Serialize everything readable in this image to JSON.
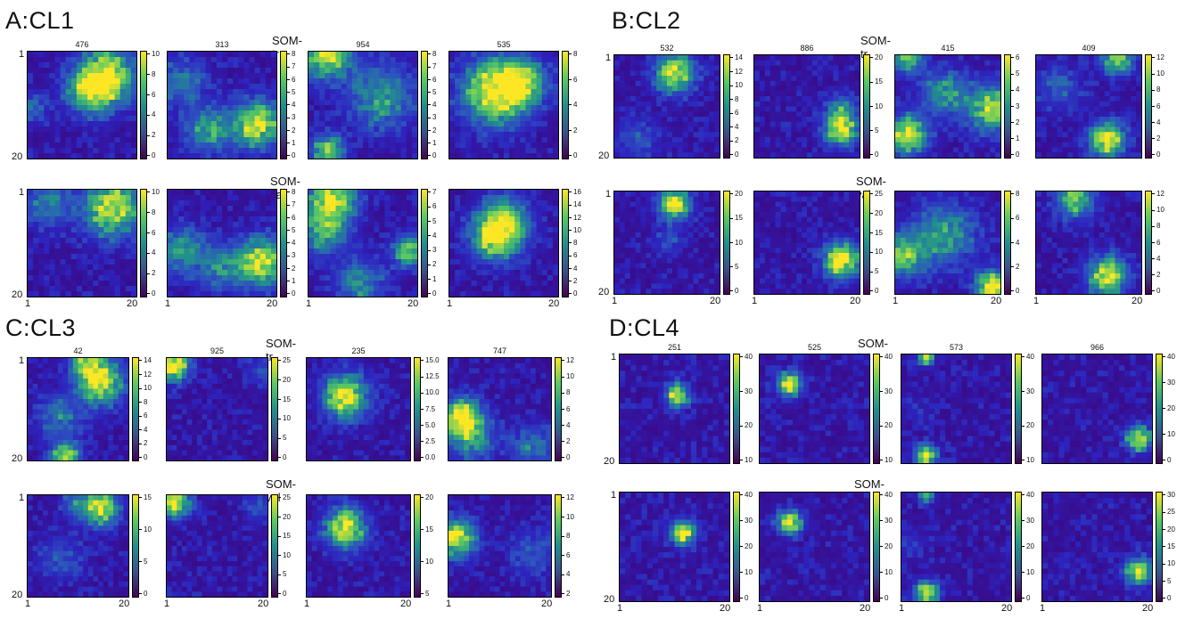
{
  "panels": [
    {
      "key": "A",
      "title": "A:CL1",
      "row_labels": [
        "SOM-tr",
        "SOM-val"
      ],
      "axis": {
        "top": "1",
        "bottom": "20",
        "left": "1",
        "right": "20"
      },
      "rows": [
        [
          {
            "num": "476",
            "ticks": [
              "10",
              "8",
              "6",
              "4",
              "2",
              "0"
            ]
          },
          {
            "num": "313",
            "ticks": [
              "8",
              "7",
              "6",
              "5",
              "4",
              "3",
              "2",
              "1",
              "0"
            ]
          },
          {
            "num": "954",
            "ticks": [
              "8",
              "7",
              "6",
              "5",
              "4",
              "3",
              "2",
              "1",
              "0"
            ]
          },
          {
            "num": "535",
            "ticks": [
              "8",
              "6",
              "4",
              "2",
              "0"
            ]
          }
        ],
        [
          {
            "num": "",
            "ticks": [
              "10",
              "8",
              "6",
              "4",
              "2",
              "0"
            ]
          },
          {
            "num": "",
            "ticks": [
              "8",
              "7",
              "6",
              "5",
              "4",
              "3",
              "2",
              "1",
              "0"
            ]
          },
          {
            "num": "",
            "ticks": [
              "7",
              "6",
              "5",
              "4",
              "3",
              "2",
              "1",
              "0"
            ]
          },
          {
            "num": "",
            "ticks": [
              "16",
              "14",
              "12",
              "10",
              "8",
              "6",
              "4",
              "2",
              "0"
            ]
          }
        ]
      ]
    },
    {
      "key": "B",
      "title": "B:CL2",
      "row_labels": [
        "SOM-tr",
        "SOM-val"
      ],
      "axis": {
        "top": "1",
        "bottom": "20",
        "left": "1",
        "right": "20"
      },
      "rows": [
        [
          {
            "num": "532",
            "ticks": [
              "14",
              "12",
              "10",
              "8",
              "6",
              "4",
              "2",
              "0"
            ]
          },
          {
            "num": "886",
            "ticks": [
              "20",
              "15",
              "10",
              "5",
              "0"
            ]
          },
          {
            "num": "415",
            "ticks": [
              "6",
              "5",
              "4",
              "3",
              "2",
              "1",
              "0"
            ]
          },
          {
            "num": "409",
            "ticks": [
              "12",
              "10",
              "8",
              "6",
              "4",
              "2",
              "0"
            ]
          }
        ],
        [
          {
            "num": "",
            "ticks": [
              "20",
              "15",
              "10",
              "5",
              "0"
            ]
          },
          {
            "num": "",
            "ticks": [
              "25",
              "20",
              "15",
              "10",
              "5",
              "0"
            ]
          },
          {
            "num": "",
            "ticks": [
              "8",
              "6",
              "4",
              "2",
              "0"
            ]
          },
          {
            "num": "",
            "ticks": [
              "12",
              "10",
              "8",
              "6",
              "4",
              "2",
              "0"
            ]
          }
        ]
      ]
    },
    {
      "key": "C",
      "title": "C:CL3",
      "row_labels": [
        "SOM-tr",
        "SOM-val"
      ],
      "axis": {
        "top": "1",
        "bottom": "20",
        "left": "1",
        "right": "20"
      },
      "rows": [
        [
          {
            "num": "42",
            "ticks": [
              "14",
              "12",
              "10",
              "8",
              "6",
              "4",
              "2",
              "0"
            ]
          },
          {
            "num": "925",
            "ticks": [
              "25",
              "20",
              "15",
              "10",
              "5",
              "0"
            ]
          },
          {
            "num": "235",
            "ticks": [
              "15.0",
              "12.5",
              "10.0",
              "7.5",
              "5.0",
              "2.5",
              "0.0"
            ]
          },
          {
            "num": "747",
            "ticks": [
              "12",
              "10",
              "8",
              "6",
              "4",
              "2",
              "0"
            ]
          }
        ],
        [
          {
            "num": "",
            "ticks": [
              "15",
              "10",
              "5",
              "0"
            ]
          },
          {
            "num": "",
            "ticks": [
              "25",
              "20",
              "15",
              "10",
              "5",
              "0"
            ]
          },
          {
            "num": "",
            "ticks": [
              "20",
              "15",
              "10",
              "5"
            ]
          },
          {
            "num": "",
            "ticks": [
              "12",
              "10",
              "8",
              "6",
              "4",
              "2"
            ]
          }
        ]
      ]
    },
    {
      "key": "D",
      "title": "D:CL4",
      "row_labels": [
        "SOM-tr",
        "SOM-val"
      ],
      "axis": {
        "top": "1",
        "bottom": "20",
        "left": "1",
        "right": "20"
      },
      "rows": [
        [
          {
            "num": "251",
            "ticks": [
              "40",
              "30",
              "20",
              "10"
            ]
          },
          {
            "num": "525",
            "ticks": [
              "40",
              "30",
              "20",
              "10"
            ]
          },
          {
            "num": "573",
            "ticks": [
              "40",
              "30",
              "20",
              "10"
            ]
          },
          {
            "num": "966",
            "ticks": [
              "40",
              "30",
              "20",
              "10",
              "0"
            ]
          }
        ],
        [
          {
            "num": "",
            "ticks": [
              "40",
              "30",
              "20",
              "10",
              "0"
            ]
          },
          {
            "num": "",
            "ticks": [
              "40",
              "30",
              "20",
              "10",
              "0"
            ]
          },
          {
            "num": "",
            "ticks": [
              "40",
              "30",
              "20",
              "10",
              "0"
            ]
          },
          {
            "num": "",
            "ticks": [
              "30",
              "25",
              "20",
              "15",
              "10",
              "5",
              "0"
            ]
          }
        ]
      ]
    }
  ],
  "chart_data": {
    "type": "heatmap",
    "grid": [
      20,
      20
    ],
    "colormap": "viridis",
    "colors": {
      "low": "#3a1fa0",
      "mid": "#21908d",
      "high": "#fde725"
    },
    "maps": [
      {
        "panel": "A",
        "row": "SOM-tr",
        "num": "476",
        "vmax": 10,
        "hotspots": [
          [
            15,
            5,
            9,
            3.5
          ],
          [
            12,
            8,
            6,
            3
          ],
          [
            1,
            11,
            3,
            2
          ]
        ]
      },
      {
        "panel": "A",
        "row": "SOM-tr",
        "num": "313",
        "vmax": 8,
        "hotspots": [
          [
            17,
            14,
            7,
            3
          ],
          [
            8,
            15,
            4,
            3
          ],
          [
            3,
            6,
            3,
            3
          ]
        ]
      },
      {
        "panel": "A",
        "row": "SOM-tr",
        "num": "954",
        "vmax": 8,
        "hotspots": [
          [
            4,
            1,
            7,
            3
          ],
          [
            4,
            19,
            6,
            2
          ],
          [
            14,
            9,
            4,
            4
          ]
        ]
      },
      {
        "panel": "A",
        "row": "SOM-tr",
        "num": "535",
        "vmax": 8,
        "hotspots": [
          [
            9,
            8,
            8,
            4
          ],
          [
            14,
            6,
            5,
            3
          ]
        ]
      },
      {
        "panel": "A",
        "row": "SOM-val",
        "num": "",
        "vmax": 10,
        "hotspots": [
          [
            16,
            4,
            9,
            3.5
          ],
          [
            4,
            3,
            4,
            3
          ]
        ]
      },
      {
        "panel": "A",
        "row": "SOM-val",
        "num": "",
        "vmax": 8,
        "hotspots": [
          [
            18,
            14,
            7,
            3
          ],
          [
            3,
            12,
            4,
            3
          ],
          [
            11,
            15,
            3,
            3
          ]
        ]
      },
      {
        "panel": "A",
        "row": "SOM-val",
        "num": "",
        "vmax": 7,
        "hotspots": [
          [
            5,
            2,
            6,
            3
          ],
          [
            3,
            8,
            4,
            3
          ],
          [
            19,
            12,
            5,
            2
          ],
          [
            10,
            18,
            3,
            3
          ]
        ]
      },
      {
        "panel": "A",
        "row": "SOM-val",
        "num": "",
        "vmax": 16,
        "hotspots": [
          [
            9,
            9,
            15,
            3
          ],
          [
            11,
            6,
            8,
            3
          ]
        ]
      },
      {
        "panel": "B",
        "row": "SOM-tr",
        "num": "532",
        "vmax": 14,
        "hotspots": [
          [
            12,
            4,
            13,
            2.5
          ],
          [
            5,
            17,
            3,
            3
          ]
        ]
      },
      {
        "panel": "B",
        "row": "SOM-tr",
        "num": "886",
        "vmax": 20,
        "hotspots": [
          [
            17,
            15,
            18,
            2.2
          ],
          [
            17,
            11,
            7,
            2
          ]
        ]
      },
      {
        "panel": "B",
        "row": "SOM-tr",
        "num": "415",
        "vmax": 6,
        "hotspots": [
          [
            3,
            16,
            5.5,
            2.5
          ],
          [
            19,
            11,
            5,
            3
          ],
          [
            10,
            8,
            3,
            3
          ],
          [
            3,
            1,
            4,
            2
          ]
        ]
      },
      {
        "panel": "B",
        "row": "SOM-tr",
        "num": "409",
        "vmax": 12,
        "hotspots": [
          [
            14,
            17,
            11,
            2.3
          ],
          [
            16,
            1,
            9,
            2
          ],
          [
            5,
            7,
            3,
            3
          ]
        ]
      },
      {
        "panel": "B",
        "row": "SOM-val",
        "num": "",
        "vmax": 20,
        "hotspots": [
          [
            12,
            3,
            19,
            2
          ],
          [
            11,
            10,
            4,
            2
          ]
        ]
      },
      {
        "panel": "B",
        "row": "SOM-val",
        "num": "",
        "vmax": 25,
        "hotspots": [
          [
            17,
            14,
            24,
            2.3
          ]
        ]
      },
      {
        "panel": "B",
        "row": "SOM-val",
        "num": "",
        "vmax": 8,
        "hotspots": [
          [
            19,
            19,
            8,
            2
          ],
          [
            2,
            13,
            5,
            3
          ],
          [
            10,
            9,
            4,
            4
          ]
        ]
      },
      {
        "panel": "B",
        "row": "SOM-val",
        "num": "",
        "vmax": 12,
        "hotspots": [
          [
            14,
            17,
            11,
            2.5
          ],
          [
            8,
            2,
            8,
            2.5
          ]
        ]
      },
      {
        "panel": "C",
        "row": "SOM-tr",
        "num": "42",
        "vmax": 14,
        "hotspots": [
          [
            15,
            5,
            13,
            3
          ],
          [
            12,
            1,
            9,
            2
          ],
          [
            8,
            20,
            11,
            2
          ],
          [
            7,
            12,
            5,
            3
          ]
        ]
      },
      {
        "panel": "C",
        "row": "SOM-tr",
        "num": "925",
        "vmax": 25,
        "hotspots": [
          [
            2,
            2,
            24,
            2
          ],
          [
            19,
            3,
            5,
            2
          ]
        ]
      },
      {
        "panel": "C",
        "row": "SOM-tr",
        "num": "235",
        "vmax": 15,
        "hotspots": [
          [
            8,
            8,
            14.5,
            2.8
          ]
        ]
      },
      {
        "panel": "C",
        "row": "SOM-tr",
        "num": "747",
        "vmax": 12,
        "hotspots": [
          [
            3,
            12,
            11,
            2.5
          ],
          [
            5,
            16,
            6,
            3
          ],
          [
            17,
            18,
            4,
            3
          ]
        ]
      },
      {
        "panel": "C",
        "row": "SOM-val",
        "num": "",
        "vmax": 17,
        "hotspots": [
          [
            15,
            3,
            16,
            2.3
          ],
          [
            10,
            2,
            6,
            2
          ],
          [
            7,
            13,
            4,
            3
          ]
        ]
      },
      {
        "panel": "C",
        "row": "SOM-val",
        "num": "",
        "vmax": 25,
        "hotspots": [
          [
            2,
            2,
            24,
            2
          ],
          [
            19,
            3,
            5,
            2
          ]
        ]
      },
      {
        "panel": "C",
        "row": "SOM-val",
        "num": "",
        "vmax": 21,
        "hotspots": [
          [
            8,
            7,
            20,
            2.6
          ]
        ]
      },
      {
        "panel": "C",
        "row": "SOM-val",
        "num": "",
        "vmax": 12,
        "hotspots": [
          [
            2,
            9,
            11,
            2.5
          ],
          [
            17,
            12,
            3,
            3
          ]
        ]
      },
      {
        "panel": "D",
        "row": "SOM-tr",
        "num": "251",
        "vmax": 45,
        "hotspots": [
          [
            11,
            8,
            42,
            1.4
          ]
        ]
      },
      {
        "panel": "D",
        "row": "SOM-tr",
        "num": "525",
        "vmax": 45,
        "hotspots": [
          [
            6,
            6,
            42,
            1.5
          ]
        ]
      },
      {
        "panel": "D",
        "row": "SOM-tr",
        "num": "573",
        "vmax": 45,
        "hotspots": [
          [
            5,
            19,
            44,
            1.3
          ],
          [
            5,
            1,
            30,
            1
          ],
          [
            3,
            11,
            4,
            2
          ]
        ]
      },
      {
        "panel": "D",
        "row": "SOM-tr",
        "num": "966",
        "vmax": 40,
        "hotspots": [
          [
            18,
            16,
            38,
            1.5
          ]
        ]
      },
      {
        "panel": "D",
        "row": "SOM-val",
        "num": "",
        "vmax": 43,
        "hotspots": [
          [
            12,
            8,
            42,
            1.5
          ]
        ]
      },
      {
        "panel": "D",
        "row": "SOM-val",
        "num": "",
        "vmax": 43,
        "hotspots": [
          [
            6,
            6,
            40,
            1.5
          ]
        ]
      },
      {
        "panel": "D",
        "row": "SOM-val",
        "num": "",
        "vmax": 43,
        "hotspots": [
          [
            5,
            19,
            40,
            1.4
          ],
          [
            5,
            1,
            25,
            1
          ],
          [
            2,
            10,
            5,
            2
          ]
        ]
      },
      {
        "panel": "D",
        "row": "SOM-val",
        "num": "",
        "vmax": 35,
        "hotspots": [
          [
            18,
            15,
            33,
            1.6
          ]
        ]
      }
    ]
  }
}
